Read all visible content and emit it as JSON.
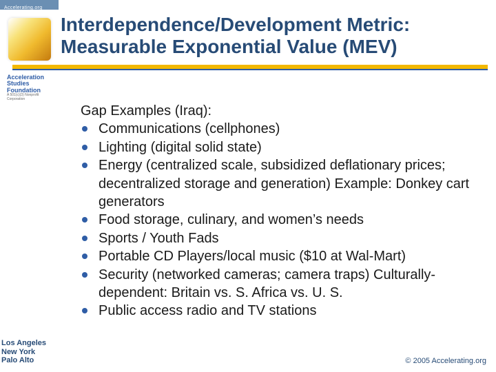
{
  "colors": {
    "title": "#274b76",
    "body_text": "#1a1a1a",
    "accent_bar": "#f2b800",
    "accent_bar_border": "#2f5da6",
    "bullet": "#2f5da6",
    "top_bar": "#6b8fb3",
    "background": "#ffffff"
  },
  "top_bar": {
    "label": "Accelerating.org"
  },
  "logo": {
    "line1": "Acceleration",
    "line2": "Studies",
    "line3": "Foundation",
    "sub": "A 501(c)(3) Nonprofit Corporation"
  },
  "title": {
    "text": "Interdependence/Development Metric: Measurable Exponential Value (MEV)",
    "fontsize_pt": 28,
    "fontweight": "bold"
  },
  "body": {
    "heading": "Gap Examples (Iraq):",
    "fontsize_pt": 20,
    "items": [
      "Communications (cellphones)",
      "Lighting (digital solid state)",
      "Energy (centralized scale, subsidized deflationary prices; decentralized storage and generation) Example: Donkey cart generators",
      "Food storage, culinary, and women’s needs",
      "Sports / Youth Fads",
      "Portable CD Players/local music ($10 at Wal-Mart)",
      "Security (networked cameras; camera traps) Culturally-dependent: Britain vs. S. Africa vs. U. S.",
      "Public access radio and TV stations"
    ]
  },
  "locations": {
    "line1": "Los Angeles",
    "line2": "New York",
    "line3": "Palo Alto",
    "fontsize_pt": 11
  },
  "copyright": {
    "text": "© 2005 Accelerating.org",
    "fontsize_pt": 11
  }
}
